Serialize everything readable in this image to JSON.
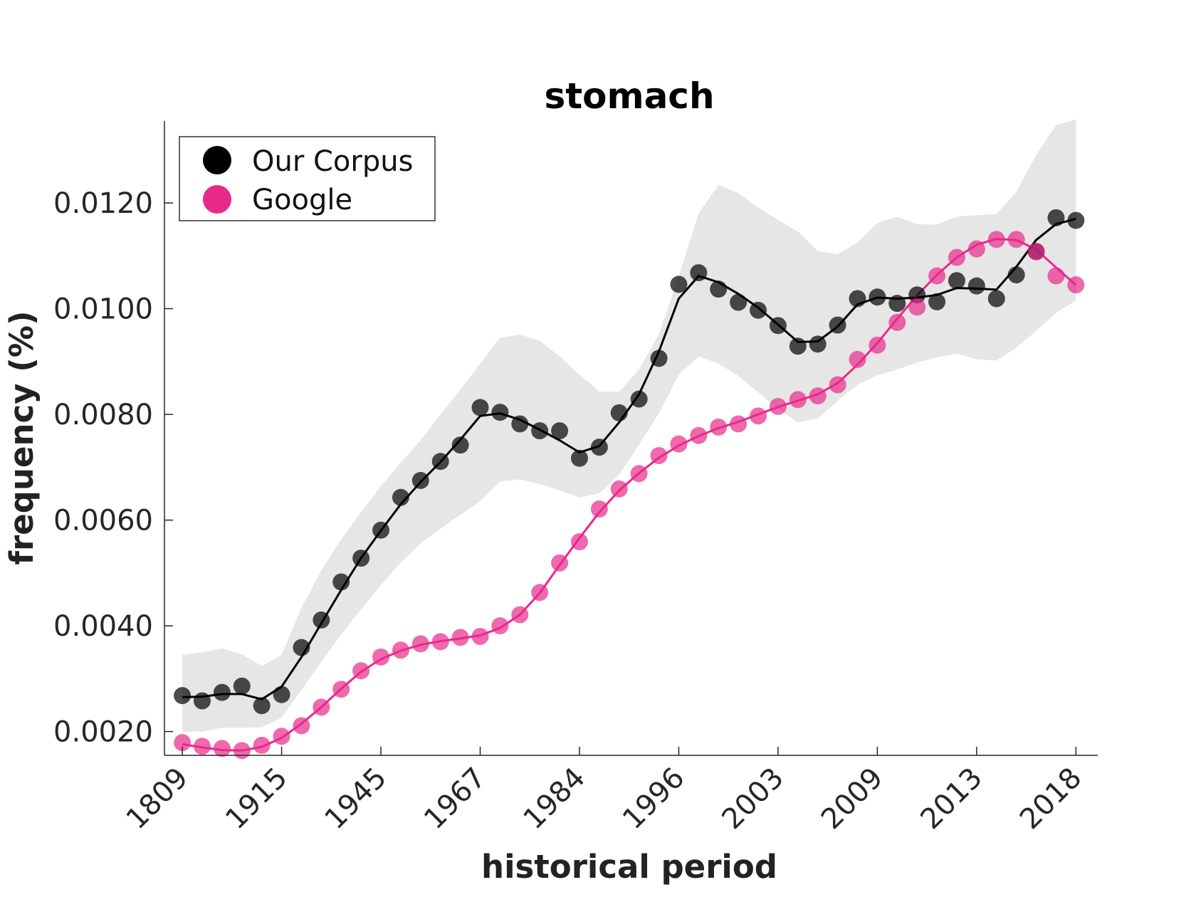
{
  "chart_data": {
    "type": "line",
    "title": "stomach",
    "xlabel": "historical period",
    "ylabel": "frequency (%)",
    "x_index": [
      1,
      2,
      3,
      4,
      5,
      6,
      7,
      8,
      9,
      10,
      11,
      12,
      13,
      14,
      15,
      16,
      17,
      18,
      19,
      20,
      21,
      22,
      23,
      24,
      25,
      26,
      27,
      28,
      29,
      30,
      31,
      32,
      33,
      34,
      35,
      36,
      37,
      38,
      39,
      40,
      41,
      42,
      43,
      44,
      45,
      46
    ],
    "x_ticks": [
      {
        "index": 1,
        "label": "1809"
      },
      {
        "index": 6,
        "label": "1915"
      },
      {
        "index": 11,
        "label": "1945"
      },
      {
        "index": 16,
        "label": "1967"
      },
      {
        "index": 21,
        "label": "1984"
      },
      {
        "index": 26,
        "label": "1996"
      },
      {
        "index": 31,
        "label": "2003"
      },
      {
        "index": 36,
        "label": "2009"
      },
      {
        "index": 41,
        "label": "2013"
      },
      {
        "index": 46,
        "label": "2018"
      }
    ],
    "y_ticks": [
      "0.0020",
      "0.0040",
      "0.0060",
      "0.0080",
      "0.0100",
      "0.0120"
    ],
    "y_tick_values": [
      0.002,
      0.004,
      0.006,
      0.008,
      0.01,
      0.012
    ],
    "ylim": [
      0.00155,
      0.01355
    ],
    "xlim": [
      0.1,
      47.1
    ],
    "legend_position": "top-left",
    "colors": {
      "corpus": "#000000",
      "google": "#e7298a",
      "band": "#e6e6e6"
    },
    "series": [
      {
        "name": "Our Corpus",
        "points": [
          0.00268,
          0.00258,
          0.00274,
          0.00286,
          0.00249,
          0.0027,
          0.00359,
          0.00411,
          0.00483,
          0.00528,
          0.00581,
          0.00643,
          0.00675,
          0.00711,
          0.00742,
          0.00813,
          0.00804,
          0.00782,
          0.00769,
          0.00769,
          0.00717,
          0.00738,
          0.00803,
          0.00829,
          0.00906,
          0.01046,
          0.01068,
          0.01037,
          0.01012,
          0.00997,
          0.00968,
          0.00929,
          0.00933,
          0.00969,
          0.01019,
          0.01022,
          0.0101,
          0.01026,
          0.01013,
          0.01053,
          0.01043,
          0.01019,
          0.01064,
          0.01108,
          0.01172,
          0.01167
        ],
        "fit": [
          0.00265,
          0.00266,
          0.00271,
          0.00271,
          0.00261,
          0.00285,
          0.00341,
          0.00405,
          0.00468,
          0.00528,
          0.0058,
          0.0063,
          0.00672,
          0.0071,
          0.00752,
          0.00797,
          0.00802,
          0.0079,
          0.00771,
          0.00751,
          0.00728,
          0.0074,
          0.00785,
          0.00838,
          0.00919,
          0.01019,
          0.01062,
          0.0105,
          0.01028,
          0.01002,
          0.0097,
          0.00937,
          0.00938,
          0.00966,
          0.01008,
          0.01021,
          0.01019,
          0.01021,
          0.01026,
          0.01039,
          0.01038,
          0.01036,
          0.01079,
          0.0113,
          0.0116,
          0.0117
        ],
        "band_upper": [
          0.00345,
          0.0035,
          0.00357,
          0.00346,
          0.00324,
          0.00345,
          0.00434,
          0.00505,
          0.00564,
          0.00615,
          0.00664,
          0.00709,
          0.00751,
          0.008,
          0.00847,
          0.00896,
          0.00945,
          0.00951,
          0.00939,
          0.0091,
          0.00875,
          0.00843,
          0.00843,
          0.00885,
          0.00952,
          0.01061,
          0.0118,
          0.01234,
          0.01219,
          0.01191,
          0.01168,
          0.01146,
          0.01109,
          0.01103,
          0.01125,
          0.01162,
          0.01174,
          0.0116,
          0.01159,
          0.01174,
          0.01177,
          0.01179,
          0.01221,
          0.01291,
          0.01347,
          0.01358
        ],
        "band_lower": [
          0.002,
          0.002,
          0.00207,
          0.00207,
          0.00208,
          0.00226,
          0.00279,
          0.00332,
          0.00384,
          0.00431,
          0.00477,
          0.0052,
          0.00556,
          0.00584,
          0.0061,
          0.00636,
          0.00673,
          0.00677,
          0.00668,
          0.00656,
          0.00643,
          0.00651,
          0.00686,
          0.00743,
          0.00802,
          0.00875,
          0.0091,
          0.00896,
          0.00873,
          0.00842,
          0.0081,
          0.00785,
          0.00792,
          0.00826,
          0.00856,
          0.00874,
          0.00885,
          0.00898,
          0.00908,
          0.00915,
          0.00904,
          0.00902,
          0.00926,
          0.00958,
          0.00992,
          0.01016
        ]
      },
      {
        "name": "Google",
        "points": [
          0.00179,
          0.00172,
          0.00168,
          0.00164,
          0.00174,
          0.00191,
          0.00211,
          0.00246,
          0.0028,
          0.00315,
          0.00341,
          0.00354,
          0.00366,
          0.0037,
          0.00378,
          0.0038,
          0.004,
          0.00421,
          0.00463,
          0.00519,
          0.00559,
          0.00621,
          0.00659,
          0.00688,
          0.00722,
          0.00744,
          0.0076,
          0.00776,
          0.00782,
          0.00797,
          0.00815,
          0.00828,
          0.00835,
          0.00856,
          0.00904,
          0.00931,
          0.00974,
          0.01003,
          0.01062,
          0.01097,
          0.01113,
          0.01131,
          0.01131,
          0.01108,
          0.01062,
          0.01045
        ],
        "fit": [
          0.00176,
          0.0017,
          0.00165,
          0.00164,
          0.00171,
          0.00188,
          0.00215,
          0.00246,
          0.00281,
          0.00313,
          0.00337,
          0.00353,
          0.00364,
          0.00371,
          0.00376,
          0.00382,
          0.00396,
          0.00421,
          0.00462,
          0.00515,
          0.00566,
          0.00615,
          0.00656,
          0.00689,
          0.00718,
          0.00741,
          0.00759,
          0.00774,
          0.00786,
          0.008,
          0.00814,
          0.00826,
          0.00838,
          0.00859,
          0.00894,
          0.00935,
          0.00981,
          0.01025,
          0.01064,
          0.01097,
          0.01121,
          0.01132,
          0.0113,
          0.01112,
          0.01078,
          0.01045
        ]
      }
    ]
  }
}
